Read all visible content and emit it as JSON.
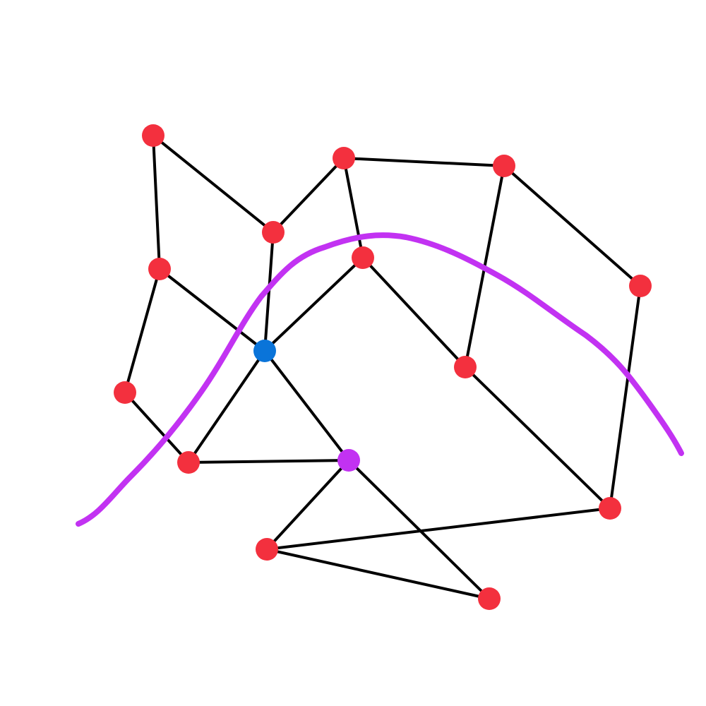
{
  "graph": {
    "colors": {
      "background": "#ffffff",
      "edge": "#000000",
      "node_default": "#f3303e",
      "node_highlight_blue": "#0a74d9",
      "node_highlight_purple": "#c232f2",
      "curve": "#c232f2"
    },
    "nodes": [
      {
        "id": "n1",
        "role": "default"
      },
      {
        "id": "n2",
        "role": "default"
      },
      {
        "id": "n3",
        "role": "default"
      },
      {
        "id": "n4",
        "role": "default"
      },
      {
        "id": "n5",
        "role": "default"
      },
      {
        "id": "n6",
        "role": "default"
      },
      {
        "id": "n7",
        "role": "default"
      },
      {
        "id": "n8",
        "role": "default"
      },
      {
        "id": "n9",
        "role": "blue"
      },
      {
        "id": "n10",
        "role": "default"
      },
      {
        "id": "n11",
        "role": "default"
      },
      {
        "id": "n12",
        "role": "purple"
      },
      {
        "id": "n13",
        "role": "default"
      },
      {
        "id": "n14",
        "role": "default"
      },
      {
        "id": "n15",
        "role": "default"
      }
    ],
    "edges": [
      [
        "n1",
        "n4"
      ],
      [
        "n1",
        "n6"
      ],
      [
        "n2",
        "n3"
      ],
      [
        "n2",
        "n4"
      ],
      [
        "n2",
        "n5"
      ],
      [
        "n3",
        "n8"
      ],
      [
        "n3",
        "n10"
      ],
      [
        "n4",
        "n9"
      ],
      [
        "n5",
        "n9"
      ],
      [
        "n5",
        "n10"
      ],
      [
        "n6",
        "n7"
      ],
      [
        "n6",
        "n9"
      ],
      [
        "n7",
        "n11"
      ],
      [
        "n8",
        "n15"
      ],
      [
        "n9",
        "n11"
      ],
      [
        "n9",
        "n12"
      ],
      [
        "n10",
        "n15"
      ],
      [
        "n11",
        "n12"
      ],
      [
        "n12",
        "n13"
      ],
      [
        "n12",
        "n14"
      ],
      [
        "n13",
        "n15"
      ],
      [
        "n13",
        "n14"
      ]
    ],
    "curve": {
      "name": "boundary-curve"
    }
  }
}
